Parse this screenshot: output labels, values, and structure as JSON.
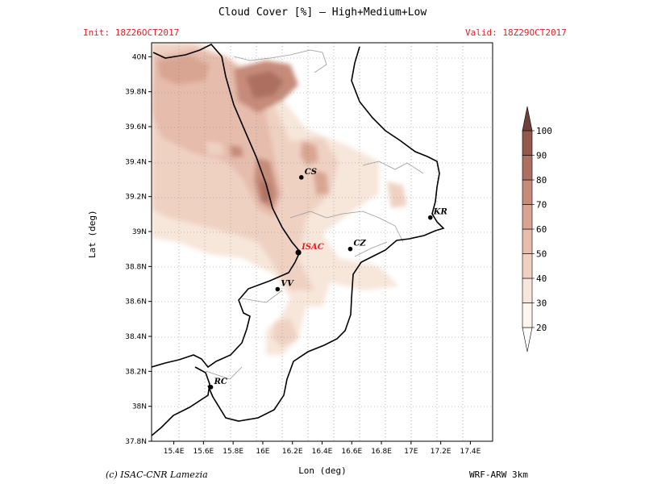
{
  "header": {
    "title": "Cloud Cover [%] — High+Medium+Low",
    "init": "Init: 18Z26OCT2017",
    "valid": "Valid: 18Z29OCT2017"
  },
  "footer": {
    "credit": "(c) ISAC-CNR Lamezia",
    "model": "WRF-ARW 3km"
  },
  "axes": {
    "xlabel": "Lon (deg)",
    "ylabel": "Lat (deg)",
    "x_ticks": [
      "15.4E",
      "15.6E",
      "15.8E",
      "16E",
      "16.2E",
      "16.4E",
      "16.6E",
      "16.8E",
      "17E",
      "17.2E",
      "17.4E"
    ],
    "y_ticks": [
      "40N",
      "39.8N",
      "39.6N",
      "39.4N",
      "39.2N",
      "39N",
      "38.8N",
      "38.6N",
      "38.4N",
      "38.2N",
      "38N",
      "37.8N"
    ]
  },
  "colorbar": {
    "levels": [
      "20",
      "30",
      "40",
      "50",
      "60",
      "70",
      "80",
      "90",
      "100"
    ],
    "colors": [
      "#fdf6ef",
      "#f7e6da",
      "#efd1c2",
      "#e6bcac",
      "#d9a593",
      "#c68b79",
      "#ad6f61",
      "#93594e",
      "#6f3f39"
    ]
  },
  "cities": [
    {
      "label": "CS",
      "lon": 16.26,
      "lat": 39.31
    },
    {
      "label": "KR",
      "lon": 17.13,
      "lat": 39.08
    },
    {
      "label": "ISAC",
      "lon": 16.24,
      "lat": 38.88,
      "highlight": true
    },
    {
      "label": "CZ",
      "lon": 16.59,
      "lat": 38.9
    },
    {
      "label": "VV",
      "lon": 16.1,
      "lat": 38.67
    },
    {
      "label": "RC",
      "lon": 15.65,
      "lat": 38.11
    }
  ]
}
